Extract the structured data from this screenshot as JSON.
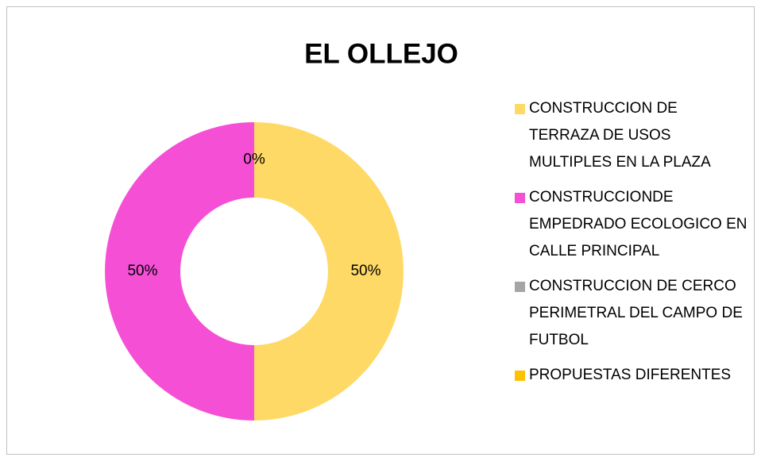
{
  "chart_data": {
    "type": "donut",
    "title": "EL OLLEJO",
    "categories": [
      "CONSTRUCCION DE TERRAZA DE USOS MULTIPLES EN LA PLAZA",
      "CONSTRUCCIONDE EMPEDRADO ECOLOGICO EN CALLE PRINCIPAL",
      "CONSTRUCCION DE CERCO PERIMETRAL DEL CAMPO DE FUTBOL",
      "PROPUESTAS DIFERENTES"
    ],
    "values": [
      50,
      50,
      0,
      0
    ],
    "value_labels": [
      "50%",
      "50%",
      "0%",
      null
    ],
    "colors": [
      "#FFD966",
      "#F54FD6",
      "#A5A5A5",
      "#FFC000"
    ],
    "legend": "right"
  }
}
